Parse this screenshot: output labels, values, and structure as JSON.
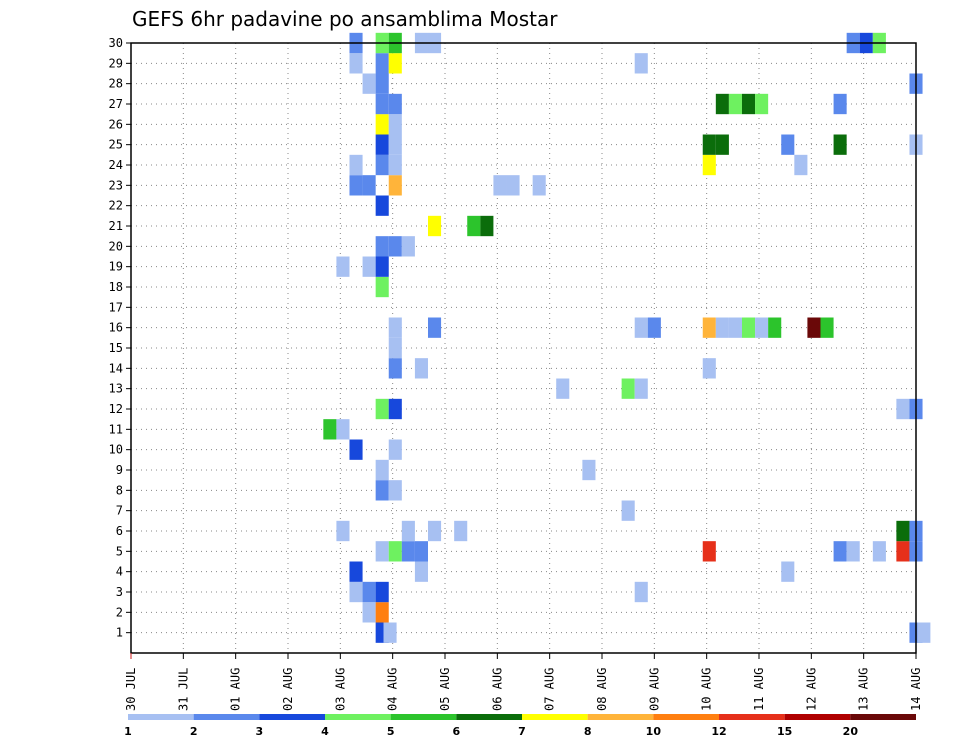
{
  "chart_data": {
    "type": "heatmap",
    "title": "GEFS 6hr padavine po ansamblima Mostar",
    "xlabel": "",
    "ylabel": "",
    "x_tick_labels": [
      "30 JUL",
      "31 JUL",
      "01 AUG",
      "02 AUG",
      "03 AUG",
      "04 AUG",
      "05 AUG",
      "06 AUG",
      "07 AUG",
      "08 AUG",
      "09 AUG",
      "10 AUG",
      "11 AUG",
      "12 AUG",
      "13 AUG",
      "14 AUG"
    ],
    "y_tick_labels": [
      "1",
      "2",
      "3",
      "4",
      "5",
      "6",
      "7",
      "8",
      "9",
      "10",
      "11",
      "12",
      "13",
      "14",
      "15",
      "16",
      "17",
      "18",
      "19",
      "20",
      "21",
      "22",
      "23",
      "24",
      "25",
      "26",
      "27",
      "28",
      "29",
      "30"
    ],
    "ylim": [
      0,
      30
    ],
    "xlim_days": [
      0,
      15
    ],
    "steps_per_day": 4,
    "colorbar": {
      "labels": [
        "1",
        "2",
        "3",
        "4",
        "5",
        "6",
        "7",
        "8",
        "10",
        "12",
        "15",
        "20"
      ],
      "colors": [
        "#a7c0f2",
        "#5a88ec",
        "#1748dc",
        "#6ef160",
        "#2cc42c",
        "#0b6d0b",
        "#ffff00",
        "#ffb43a",
        "#ff7f10",
        "#e6301a",
        "#b00000",
        "#6a0808"
      ]
    },
    "cells": [
      {
        "t": 1,
        "d": 4.8,
        "c": 3
      },
      {
        "t": 1,
        "d": 4.95,
        "c": 1
      },
      {
        "t": 1,
        "d": 15,
        "c": 2
      },
      {
        "t": 1,
        "d": 15.15,
        "c": 1
      },
      {
        "t": 2,
        "d": 4.55,
        "c": 1
      },
      {
        "t": 2,
        "d": 4.8,
        "c": 9
      },
      {
        "t": 3,
        "d": 4.3,
        "c": 1
      },
      {
        "t": 3,
        "d": 4.55,
        "c": 2
      },
      {
        "t": 3,
        "d": 4.8,
        "c": 3
      },
      {
        "t": 3,
        "d": 9.75,
        "c": 1
      },
      {
        "t": 4,
        "d": 4.3,
        "c": 3
      },
      {
        "t": 4,
        "d": 5.55,
        "c": 1
      },
      {
        "t": 4,
        "d": 12.55,
        "c": 1
      },
      {
        "t": 5,
        "d": 4.8,
        "c": 1
      },
      {
        "t": 5,
        "d": 5.05,
        "c": 4
      },
      {
        "t": 5,
        "d": 5.3,
        "c": 2
      },
      {
        "t": 5,
        "d": 5.55,
        "c": 2
      },
      {
        "t": 5,
        "d": 11.05,
        "c": 10
      },
      {
        "t": 5,
        "d": 13.55,
        "c": 2
      },
      {
        "t": 5,
        "d": 13.8,
        "c": 1
      },
      {
        "t": 5,
        "d": 14.3,
        "c": 1
      },
      {
        "t": 5,
        "d": 14.75,
        "c": 10
      },
      {
        "t": 5,
        "d": 15,
        "c": 2
      },
      {
        "t": 6,
        "d": 4.05,
        "c": 1
      },
      {
        "t": 6,
        "d": 5.3,
        "c": 1
      },
      {
        "t": 6,
        "d": 5.8,
        "c": 1
      },
      {
        "t": 6,
        "d": 6.3,
        "c": 1
      },
      {
        "t": 6,
        "d": 14.75,
        "c": 6
      },
      {
        "t": 6,
        "d": 15,
        "c": 2
      },
      {
        "t": 7,
        "d": 9.5,
        "c": 1
      },
      {
        "t": 8,
        "d": 4.8,
        "c": 2
      },
      {
        "t": 8,
        "d": 5.05,
        "c": 1
      },
      {
        "t": 9,
        "d": 4.8,
        "c": 1
      },
      {
        "t": 9,
        "d": 8.75,
        "c": 1
      },
      {
        "t": 10,
        "d": 4.3,
        "c": 3
      },
      {
        "t": 10,
        "d": 5.05,
        "c": 1
      },
      {
        "t": 11,
        "d": 3.8,
        "c": 5
      },
      {
        "t": 11,
        "d": 4.05,
        "c": 1
      },
      {
        "t": 12,
        "d": 4.8,
        "c": 4
      },
      {
        "t": 12,
        "d": 5.05,
        "c": 3
      },
      {
        "t": 12,
        "d": 14.75,
        "c": 1
      },
      {
        "t": 12,
        "d": 15,
        "c": 2
      },
      {
        "t": 13,
        "d": 8.25,
        "c": 1
      },
      {
        "t": 13,
        "d": 9.5,
        "c": 4
      },
      {
        "t": 13,
        "d": 9.75,
        "c": 1
      },
      {
        "t": 14,
        "d": 5.05,
        "c": 2
      },
      {
        "t": 14,
        "d": 5.55,
        "c": 1
      },
      {
        "t": 14,
        "d": 11.05,
        "c": 1
      },
      {
        "t": 15,
        "d": 5.05,
        "c": 1
      },
      {
        "t": 16,
        "d": 5.05,
        "c": 1
      },
      {
        "t": 16,
        "d": 5.8,
        "c": 2
      },
      {
        "t": 16,
        "d": 9.75,
        "c": 1
      },
      {
        "t": 16,
        "d": 10,
        "c": 2
      },
      {
        "t": 16,
        "d": 11.05,
        "c": 8
      },
      {
        "t": 16,
        "d": 11.3,
        "c": 1
      },
      {
        "t": 16,
        "d": 11.55,
        "c": 1
      },
      {
        "t": 16,
        "d": 11.8,
        "c": 4
      },
      {
        "t": 16,
        "d": 12.05,
        "c": 1
      },
      {
        "t": 16,
        "d": 12.3,
        "c": 5
      },
      {
        "t": 16,
        "d": 13.05,
        "c": 12
      },
      {
        "t": 16,
        "d": 13.3,
        "c": 5
      },
      {
        "t": 18,
        "d": 4.8,
        "c": 4
      },
      {
        "t": 19,
        "d": 4.05,
        "c": 1
      },
      {
        "t": 19,
        "d": 4.55,
        "c": 1
      },
      {
        "t": 19,
        "d": 4.8,
        "c": 3
      },
      {
        "t": 20,
        "d": 4.8,
        "c": 2
      },
      {
        "t": 20,
        "d": 5.05,
        "c": 2
      },
      {
        "t": 20,
        "d": 5.3,
        "c": 1
      },
      {
        "t": 21,
        "d": 5.8,
        "c": 7
      },
      {
        "t": 21,
        "d": 6.55,
        "c": 5
      },
      {
        "t": 21,
        "d": 6.8,
        "c": 6
      },
      {
        "t": 22,
        "d": 4.8,
        "c": 3
      },
      {
        "t": 23,
        "d": 4.3,
        "c": 2
      },
      {
        "t": 23,
        "d": 4.55,
        "c": 2
      },
      {
        "t": 23,
        "d": 5.05,
        "c": 8
      },
      {
        "t": 23,
        "d": 7.05,
        "c": 1
      },
      {
        "t": 23,
        "d": 7.3,
        "c": 1
      },
      {
        "t": 23,
        "d": 7.8,
        "c": 1
      },
      {
        "t": 24,
        "d": 4.3,
        "c": 1
      },
      {
        "t": 24,
        "d": 4.8,
        "c": 2
      },
      {
        "t": 24,
        "d": 5.05,
        "c": 1
      },
      {
        "t": 24,
        "d": 11.05,
        "c": 7
      },
      {
        "t": 24,
        "d": 12.8,
        "c": 1
      },
      {
        "t": 25,
        "d": 4.8,
        "c": 3
      },
      {
        "t": 25,
        "d": 5.05,
        "c": 1
      },
      {
        "t": 25,
        "d": 11.05,
        "c": 6
      },
      {
        "t": 25,
        "d": 11.3,
        "c": 6
      },
      {
        "t": 25,
        "d": 12.55,
        "c": 2
      },
      {
        "t": 25,
        "d": 13.55,
        "c": 6
      },
      {
        "t": 25,
        "d": 15,
        "c": 1
      },
      {
        "t": 26,
        "d": 4.8,
        "c": 7
      },
      {
        "t": 26,
        "d": 5.05,
        "c": 1
      },
      {
        "t": 27,
        "d": 4.8,
        "c": 2
      },
      {
        "t": 27,
        "d": 5.05,
        "c": 2
      },
      {
        "t": 27,
        "d": 11.3,
        "c": 6
      },
      {
        "t": 27,
        "d": 11.55,
        "c": 4
      },
      {
        "t": 27,
        "d": 11.8,
        "c": 6
      },
      {
        "t": 27,
        "d": 12.05,
        "c": 4
      },
      {
        "t": 27,
        "d": 13.55,
        "c": 2
      },
      {
        "t": 28,
        "d": 4.55,
        "c": 1
      },
      {
        "t": 28,
        "d": 4.8,
        "c": 2
      },
      {
        "t": 28,
        "d": 15,
        "c": 2
      },
      {
        "t": 29,
        "d": 4.3,
        "c": 1
      },
      {
        "t": 29,
        "d": 4.8,
        "c": 2
      },
      {
        "t": 29,
        "d": 5.05,
        "c": 7
      },
      {
        "t": 29,
        "d": 9.75,
        "c": 1
      },
      {
        "t": 30,
        "d": 4.3,
        "c": 2
      },
      {
        "t": 30,
        "d": 4.8,
        "c": 4
      },
      {
        "t": 30,
        "d": 5.05,
        "c": 5
      },
      {
        "t": 30,
        "d": 5.55,
        "c": 1
      },
      {
        "t": 30,
        "d": 5.8,
        "c": 1
      },
      {
        "t": 30,
        "d": 13.8,
        "c": 2
      },
      {
        "t": 30,
        "d": 14.05,
        "c": 3
      },
      {
        "t": 30,
        "d": 14.3,
        "c": 4
      }
    ]
  }
}
